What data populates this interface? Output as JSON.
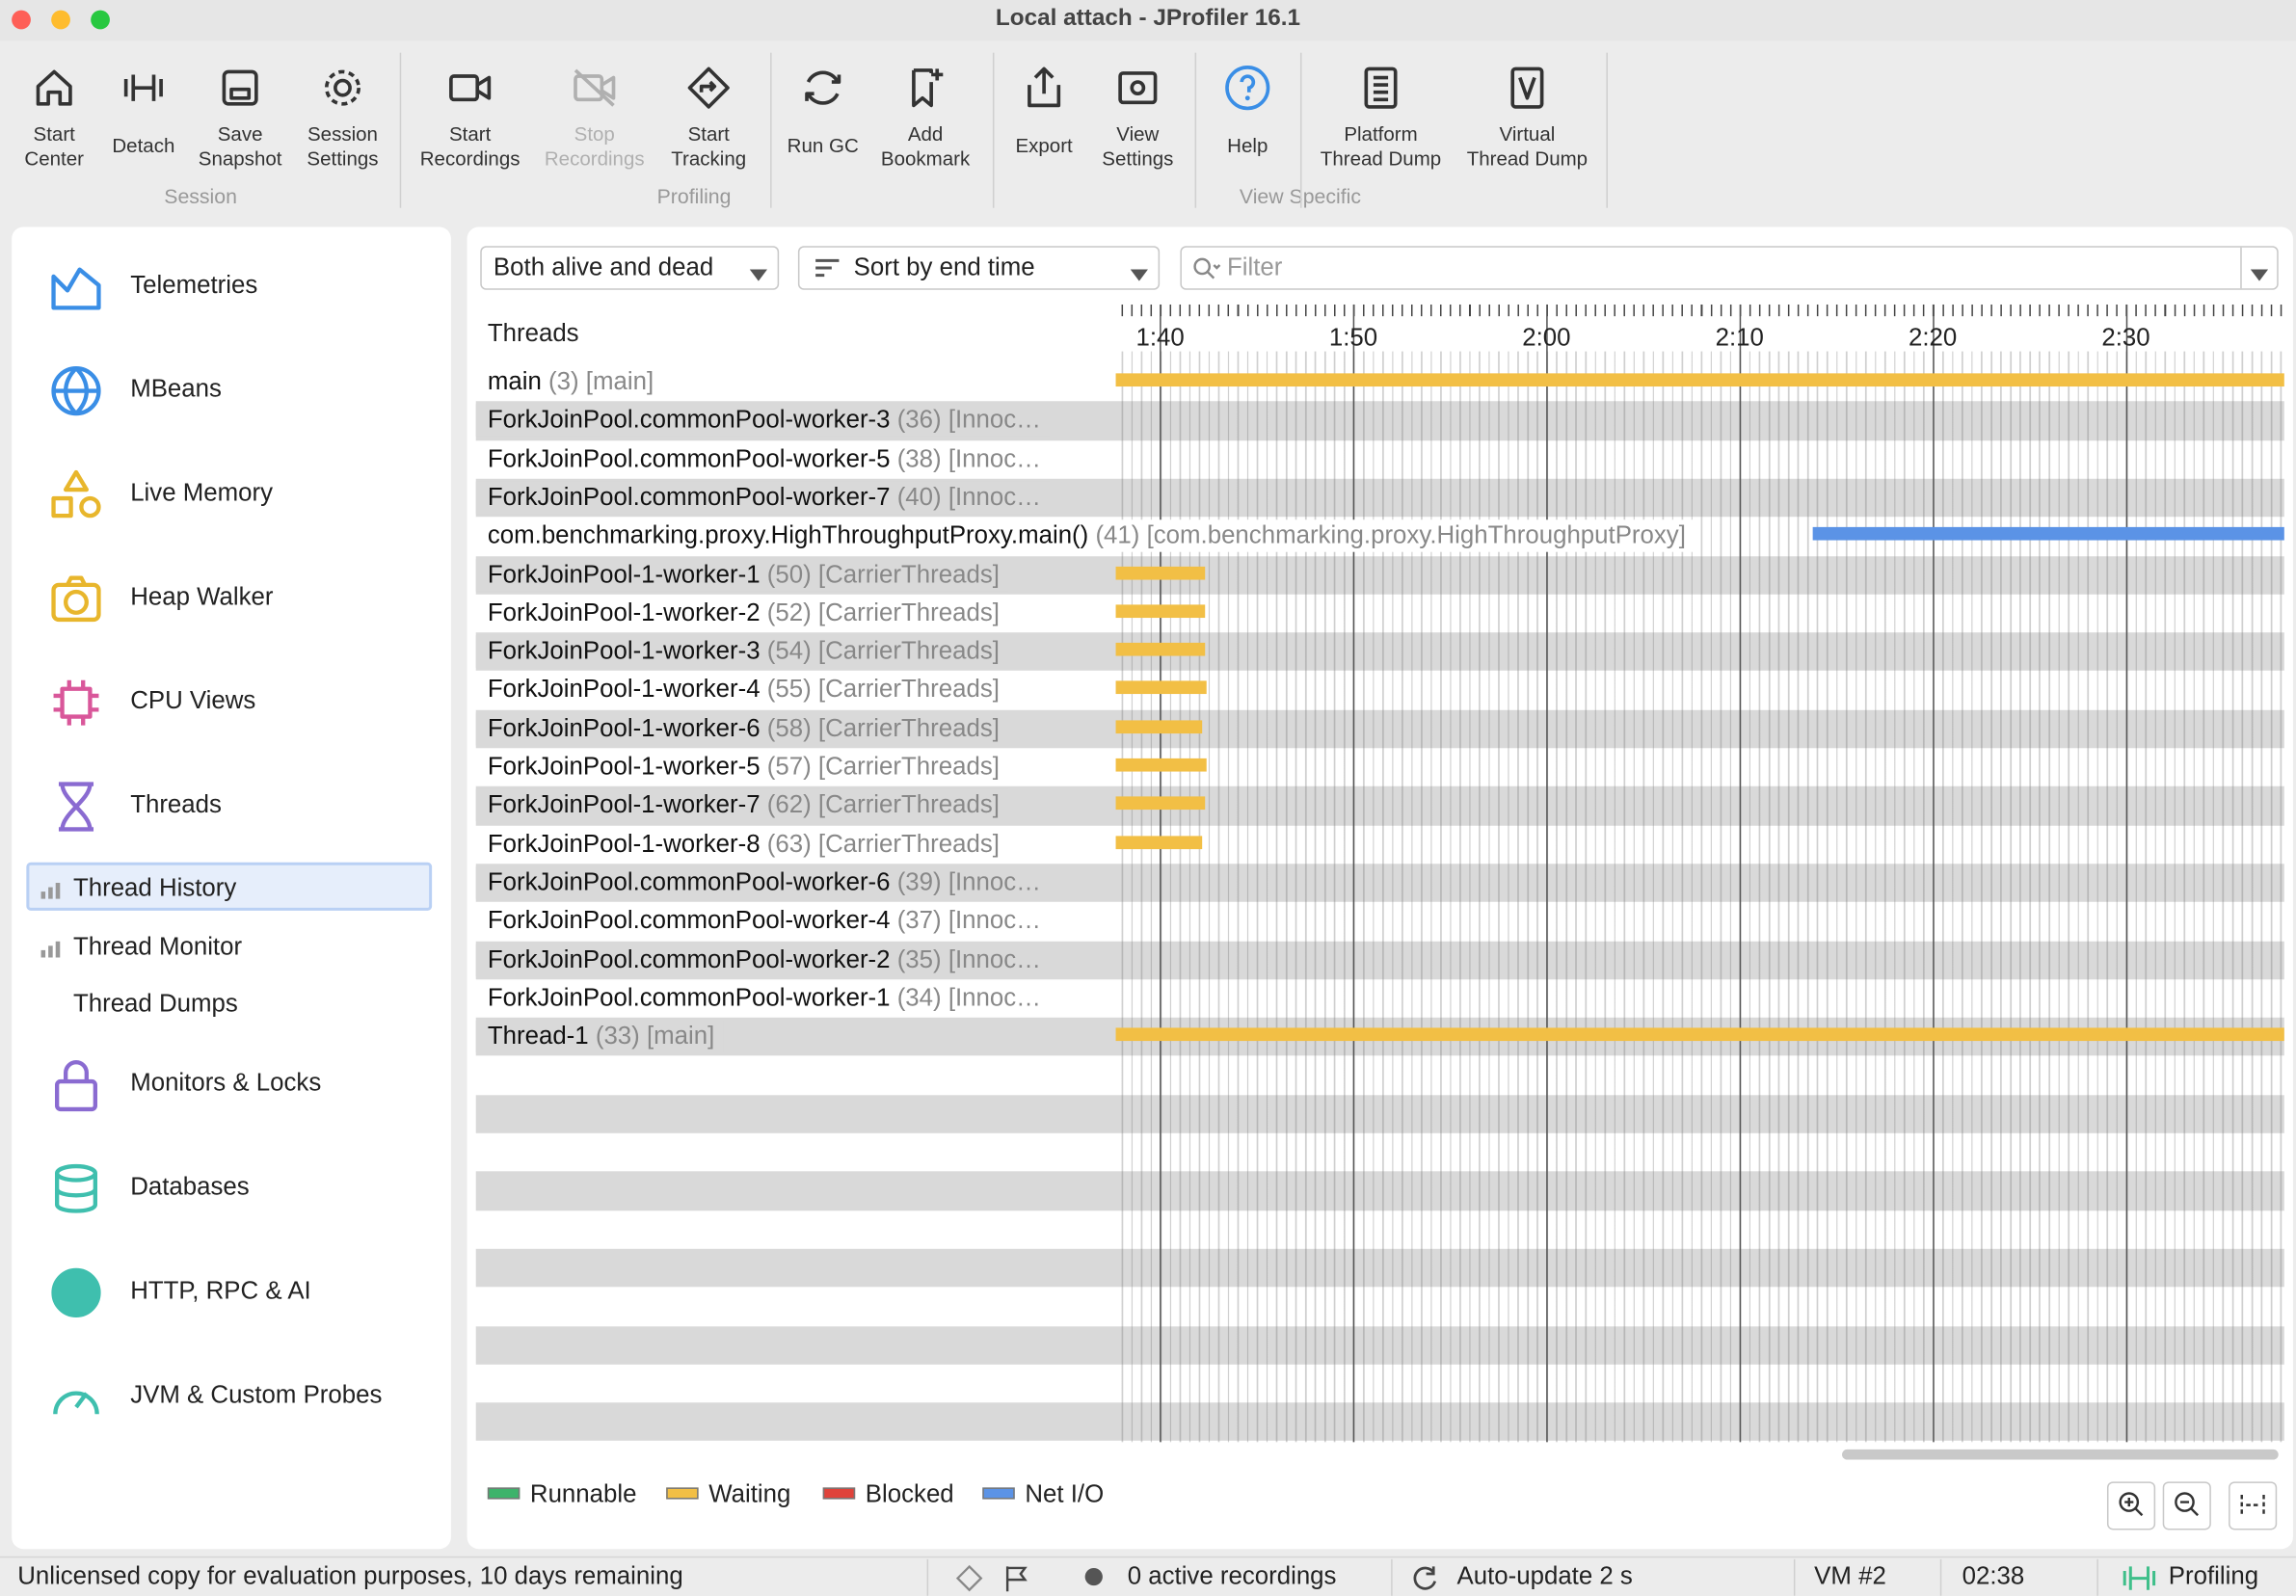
{
  "window_title": "Local attach - JProfiler 16.1",
  "toolbar": {
    "groups": [
      {
        "label": "Session",
        "buttons": [
          {
            "lines": [
              "Start",
              "Center"
            ]
          },
          {
            "lines": [
              "Detach"
            ]
          },
          {
            "lines": [
              "Save",
              "Snapshot"
            ]
          },
          {
            "lines": [
              "Session",
              "Settings"
            ]
          }
        ]
      },
      {
        "label": "Profiling",
        "buttons": [
          {
            "lines": [
              "Start",
              "Recordings"
            ]
          },
          {
            "lines": [
              "Stop",
              "Recordings"
            ],
            "disabled": true
          },
          {
            "lines": [
              "Start",
              "Tracking"
            ]
          },
          {
            "lines": [
              "Run GC"
            ]
          },
          {
            "lines": [
              "Add",
              "Bookmark"
            ]
          }
        ]
      },
      {
        "label": "View Specific",
        "buttons": [
          {
            "lines": [
              "Export"
            ]
          },
          {
            "lines": [
              "View",
              "Settings"
            ]
          },
          {
            "lines": [
              "Help"
            ]
          },
          {
            "lines": [
              "Platform",
              "Thread Dump"
            ]
          },
          {
            "lines": [
              "Virtual",
              "Thread Dump"
            ]
          }
        ]
      }
    ]
  },
  "sidebar": {
    "items": [
      {
        "label": "Telemetries",
        "color": "#3a8ee6"
      },
      {
        "label": "MBeans",
        "color": "#3a8ee6"
      },
      {
        "label": "Live Memory",
        "color": "#e8b62c"
      },
      {
        "label": "Heap Walker",
        "color": "#e8b62c"
      },
      {
        "label": "CPU Views",
        "color": "#d9579a"
      },
      {
        "label": "Threads",
        "color": "#8a6bd1"
      }
    ],
    "subitems": [
      {
        "label": "Thread History",
        "selected": true
      },
      {
        "label": "Thread Monitor"
      },
      {
        "label": "Thread Dumps"
      }
    ],
    "items2": [
      {
        "label": "Monitors & Locks",
        "color": "#8a6bd1"
      },
      {
        "label": "Databases",
        "color": "#3fbfae"
      },
      {
        "label": "HTTP, RPC & AI",
        "color": "#3fbfae"
      },
      {
        "label": "JVM & Custom Probes",
        "color": "#3fbfae"
      }
    ]
  },
  "controls": {
    "liveness": "Both alive and dead",
    "sort": "Sort by end time",
    "filter_placeholder": "Filter"
  },
  "threads_header": "Threads",
  "timeline": {
    "range": [
      97.7,
      158.2
    ],
    "ticks": [
      {
        "value": 100,
        "label": "1:40"
      },
      {
        "value": 110,
        "label": "1:50"
      },
      {
        "value": 120,
        "label": "2:00"
      },
      {
        "value": 130,
        "label": "2:10"
      },
      {
        "value": 140,
        "label": "2:20"
      },
      {
        "value": 150,
        "label": "2:30"
      }
    ]
  },
  "threads": [
    {
      "name": "main",
      "id": "(3)",
      "group": "[main]",
      "bar": {
        "start": 97.7,
        "end": 158.2,
        "color": "#f2bf45"
      }
    },
    {
      "name": "ForkJoinPool.commonPool-worker-3",
      "id": "(36)",
      "group": "[Innoc…"
    },
    {
      "name": "ForkJoinPool.commonPool-worker-5",
      "id": "(38)",
      "group": "[Innoc…"
    },
    {
      "name": "ForkJoinPool.commonPool-worker-7",
      "id": "(40)",
      "group": "[Innoc…"
    },
    {
      "name": "com.benchmarking.proxy.HighThroughputProxy.main()",
      "id": "(41)",
      "group": "[com.benchmarking.proxy.HighThroughputProxy]",
      "bar": {
        "start": 133.8,
        "end": 158.2,
        "color": "#5b93e6"
      }
    },
    {
      "name": "ForkJoinPool-1-worker-1",
      "id": "(50)",
      "group": "[CarrierThreads]",
      "bar": {
        "start": 97.7,
        "end": 102.3,
        "color": "#f2bf45"
      }
    },
    {
      "name": "ForkJoinPool-1-worker-2",
      "id": "(52)",
      "group": "[CarrierThreads]",
      "bar": {
        "start": 97.7,
        "end": 102.3,
        "color": "#f2bf45"
      }
    },
    {
      "name": "ForkJoinPool-1-worker-3",
      "id": "(54)",
      "group": "[CarrierThreads]",
      "bar": {
        "start": 97.7,
        "end": 102.3,
        "color": "#f2bf45"
      }
    },
    {
      "name": "ForkJoinPool-1-worker-4",
      "id": "(55)",
      "group": "[CarrierThreads]",
      "bar": {
        "start": 97.7,
        "end": 102.4,
        "color": "#f2bf45"
      }
    },
    {
      "name": "ForkJoinPool-1-worker-6",
      "id": "(58)",
      "group": "[CarrierThreads]",
      "bar": {
        "start": 97.7,
        "end": 102.2,
        "color": "#f2bf45"
      }
    },
    {
      "name": "ForkJoinPool-1-worker-5",
      "id": "(57)",
      "group": "[CarrierThreads]",
      "bar": {
        "start": 97.7,
        "end": 102.4,
        "color": "#f2bf45"
      }
    },
    {
      "name": "ForkJoinPool-1-worker-7",
      "id": "(62)",
      "group": "[CarrierThreads]",
      "bar": {
        "start": 97.7,
        "end": 102.3,
        "color": "#f2bf45"
      }
    },
    {
      "name": "ForkJoinPool-1-worker-8",
      "id": "(63)",
      "group": "[CarrierThreads]",
      "bar": {
        "start": 97.7,
        "end": 102.2,
        "color": "#f2bf45"
      }
    },
    {
      "name": "ForkJoinPool.commonPool-worker-6",
      "id": "(39)",
      "group": "[Innoc…"
    },
    {
      "name": "ForkJoinPool.commonPool-worker-4",
      "id": "(37)",
      "group": "[Innoc…"
    },
    {
      "name": "ForkJoinPool.commonPool-worker-2",
      "id": "(35)",
      "group": "[Innoc…"
    },
    {
      "name": "ForkJoinPool.commonPool-worker-1",
      "id": "(34)",
      "group": "[Innoc…"
    },
    {
      "name": "Thread-1",
      "id": "(33)",
      "group": "[main]",
      "bar": {
        "start": 97.7,
        "end": 158.2,
        "color": "#f2bf45"
      }
    }
  ],
  "legend": [
    {
      "name": "Runnable",
      "color": "#3db36b"
    },
    {
      "name": "Waiting",
      "color": "#f2bf45"
    },
    {
      "name": "Blocked",
      "color": "#e0423a"
    },
    {
      "name": "Net I/O",
      "color": "#5b93e6"
    }
  ],
  "status": {
    "license": "Unlicensed copy for evaluation purposes, 10 days remaining",
    "recordings": "0 active recordings",
    "update": "Auto-update 2 s",
    "vm": "VM #2",
    "time": "02:38",
    "mode": "Profiling"
  }
}
